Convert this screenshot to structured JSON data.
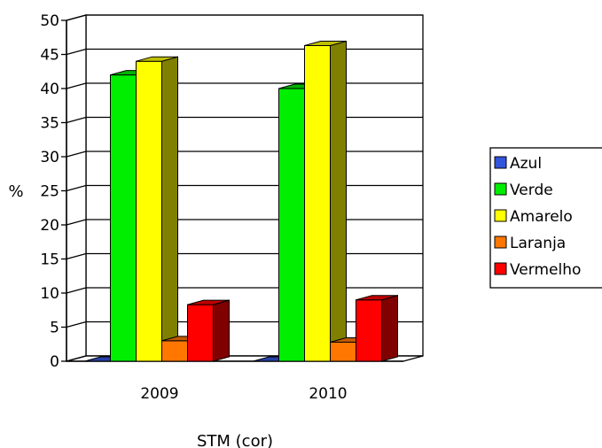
{
  "chart_data": {
    "type": "bar",
    "style": "3d-clustered-column",
    "categories": [
      "2009",
      "2010"
    ],
    "series": [
      {
        "name": "Azul",
        "color": "#3355dd",
        "values": [
          0,
          0
        ]
      },
      {
        "name": "Verde",
        "color": "#00ee00",
        "values": [
          42,
          40
        ]
      },
      {
        "name": "Amarelo",
        "color": "#ffff00",
        "values": [
          44,
          46.3
        ]
      },
      {
        "name": "Laranja",
        "color": "#ff7700",
        "values": [
          3,
          2.8
        ]
      },
      {
        "name": "Vermelho",
        "color": "#ff0000",
        "values": [
          8.3,
          9
        ]
      }
    ],
    "title": "",
    "xlabel": "STM (cor)",
    "ylabel": "%",
    "ylim": [
      0,
      50
    ],
    "yticks": [
      0,
      5,
      10,
      15,
      20,
      25,
      30,
      35,
      40,
      45,
      50
    ],
    "grid": true,
    "legend": "right"
  }
}
